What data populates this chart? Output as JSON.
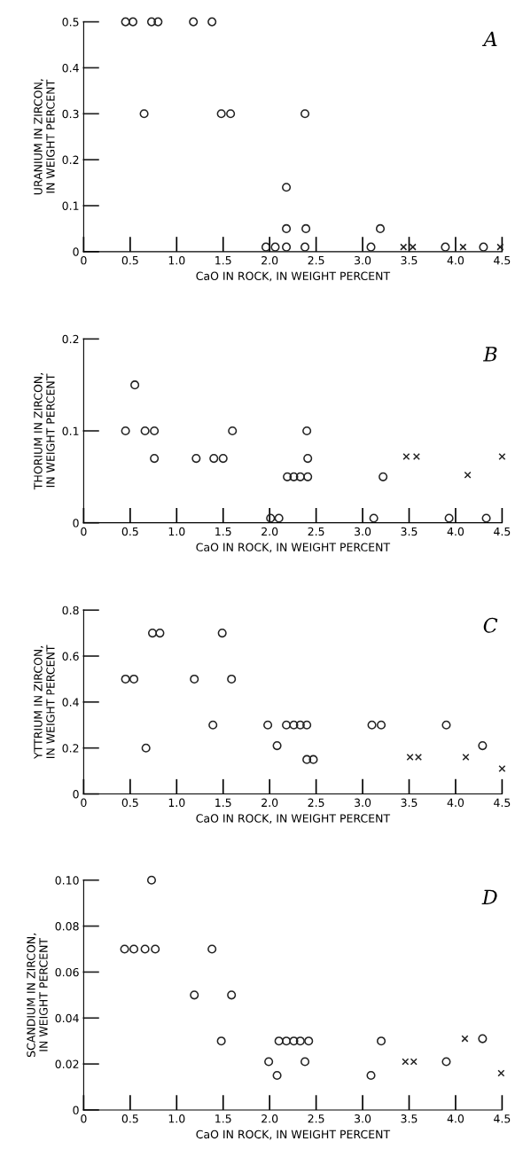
{
  "chart_data": [
    {
      "type": "scatter",
      "annotations": [
        "A"
      ],
      "xlabel": "CaO IN ROCK, IN WEIGHT PERCENT",
      "ylabel": "URANIUM IN ZIRCON,\nIN WEIGHT PERCENT",
      "xlim": [
        0,
        4.5
      ],
      "ylim": [
        0,
        0.5
      ],
      "xticks": [
        0,
        0.5,
        {
          "value": 1,
          "label": "1.0"
        },
        1.5,
        {
          "value": 2,
          "label": "2.0"
        },
        2.5,
        {
          "value": 3,
          "label": "3.0"
        },
        3.5,
        {
          "value": 4,
          "label": "4.0"
        },
        4.5
      ],
      "yticks": [
        0,
        0.1,
        0.2,
        0.3,
        0.4,
        0.5
      ],
      "series": [
        {
          "color": "#222222",
          "marker": "circle",
          "x": [
            0.45,
            0.53,
            0.73,
            0.8,
            1.18,
            1.38,
            0.65,
            1.48,
            1.58,
            2.38,
            2.18,
            2.18,
            2.39,
            3.19,
            1.96,
            2.06,
            2.18,
            2.38,
            3.09,
            3.89,
            4.3
          ],
          "values": [
            0.5,
            0.5,
            0.5,
            0.5,
            0.5,
            0.5,
            0.3,
            0.3,
            0.3,
            0.3,
            0.14,
            0.05,
            0.05,
            0.05,
            0.01,
            0.01,
            0.01,
            0.01,
            0.01,
            0.01,
            0.01
          ]
        },
        {
          "color": "#222222",
          "marker": "cross",
          "x": [
            3.44,
            3.54,
            4.08,
            4.48
          ],
          "values": [
            0.01,
            0.01,
            0.01,
            0.01
          ]
        }
      ]
    },
    {
      "type": "scatter",
      "annotations": [
        "B"
      ],
      "xlabel": "CaO IN ROCK, IN WEIGHT PERCENT",
      "ylabel": "THORIUM IN ZIRCON,\nIN WEIGHT PERCENT",
      "xlim": [
        0,
        4.5
      ],
      "ylim": [
        0,
        0.2
      ],
      "xticks": [
        0,
        0.5,
        {
          "value": 1,
          "label": "1.0"
        },
        1.5,
        {
          "value": 2,
          "label": "2.0"
        },
        2.5,
        {
          "value": 3,
          "label": "3.0"
        },
        3.5,
        {
          "value": 4,
          "label": "4.0"
        },
        4.5
      ],
      "yticks": [
        0,
        0.1,
        0.2
      ],
      "series": [
        {
          "color": "#222222",
          "marker": "circle",
          "x": [
            0.55,
            0.45,
            0.66,
            0.76,
            1.6,
            2.4,
            0.76,
            1.21,
            1.4,
            1.5,
            2.41,
            2.19,
            2.26,
            2.33,
            2.41,
            3.22,
            2.01,
            2.1,
            3.12,
            3.93,
            4.33
          ],
          "values": [
            0.15,
            0.1,
            0.1,
            0.1,
            0.1,
            0.1,
            0.07,
            0.07,
            0.07,
            0.07,
            0.07,
            0.05,
            0.05,
            0.05,
            0.05,
            0.05,
            0.005,
            0.005,
            0.005,
            0.005,
            0.005
          ]
        },
        {
          "color": "#222222",
          "marker": "cross",
          "x": [
            3.47,
            3.58,
            4.13,
            4.5
          ],
          "values": [
            0.072,
            0.072,
            0.052,
            0.072
          ]
        }
      ]
    },
    {
      "type": "scatter",
      "annotations": [
        "C"
      ],
      "xlabel": "CaO IN ROCK, IN WEIGHT PERCENT",
      "ylabel": "YTTRIUM IN ZIRCON,\nIN WEIGHT PERCENT",
      "xlim": [
        0,
        4.5
      ],
      "ylim": [
        0,
        0.8
      ],
      "xticks": [
        0,
        0.5,
        {
          "value": 1,
          "label": "1.0"
        },
        1.5,
        {
          "value": 2,
          "label": "2.0"
        },
        2.5,
        {
          "value": 3,
          "label": "3.0"
        },
        3.5,
        {
          "value": 4,
          "label": "4.0"
        },
        4.5
      ],
      "yticks": [
        0,
        0.2,
        0.4,
        0.6,
        0.8
      ],
      "series": [
        {
          "color": "#222222",
          "marker": "circle",
          "x": [
            0.74,
            0.82,
            1.49,
            0.45,
            0.54,
            1.19,
            1.59,
            1.39,
            1.98,
            2.18,
            2.26,
            2.33,
            2.4,
            3.1,
            3.2,
            3.9,
            0.67,
            2.08,
            4.29,
            2.4,
            2.47
          ],
          "values": [
            0.7,
            0.7,
            0.7,
            0.5,
            0.5,
            0.5,
            0.5,
            0.3,
            0.3,
            0.3,
            0.3,
            0.3,
            0.3,
            0.3,
            0.3,
            0.3,
            0.2,
            0.21,
            0.21,
            0.15,
            0.15
          ]
        },
        {
          "color": "#222222",
          "marker": "cross",
          "x": [
            3.51,
            3.6,
            4.11,
            4.5
          ],
          "values": [
            0.16,
            0.16,
            0.16,
            0.11
          ]
        }
      ]
    },
    {
      "type": "scatter",
      "annotations": [
        "D"
      ],
      "xlabel": "CaO IN ROCK, IN WEIGHT PERCENT",
      "ylabel": "SCANDIUM IN ZIRCON,\nIN WEIGHT PERCENT",
      "xlim": [
        0,
        4.5
      ],
      "ylim": [
        0,
        0.1
      ],
      "xticks": [
        0,
        0.5,
        {
          "value": 1,
          "label": "1.0"
        },
        1.5,
        {
          "value": 2,
          "label": "2.0"
        },
        2.5,
        {
          "value": 3,
          "label": "3.0"
        },
        3.5,
        {
          "value": 4,
          "label": "4.0"
        },
        4.5
      ],
      "yticks": [
        0,
        0.02,
        {
          "value": 0.04,
          "label": "0.04"
        },
        0.06,
        0.08,
        {
          "value": 0.1,
          "label": "0.10"
        }
      ],
      "series": [
        {
          "color": "#222222",
          "marker": "circle",
          "x": [
            0.73,
            0.44,
            0.54,
            0.66,
            0.77,
            1.38,
            1.19,
            1.59,
            1.48,
            2.1,
            2.18,
            2.26,
            2.33,
            2.42,
            3.2,
            4.29,
            1.99,
            2.38,
            3.9,
            2.08,
            3.09
          ],
          "values": [
            0.1,
            0.07,
            0.07,
            0.07,
            0.07,
            0.07,
            0.05,
            0.05,
            0.03,
            0.03,
            0.03,
            0.03,
            0.03,
            0.03,
            0.03,
            0.031,
            0.021,
            0.021,
            0.021,
            0.015,
            0.015
          ]
        },
        {
          "color": "#222222",
          "marker": "cross",
          "x": [
            4.1,
            3.46,
            3.55,
            4.49
          ],
          "values": [
            0.031,
            0.021,
            0.021,
            0.016
          ]
        }
      ]
    }
  ]
}
